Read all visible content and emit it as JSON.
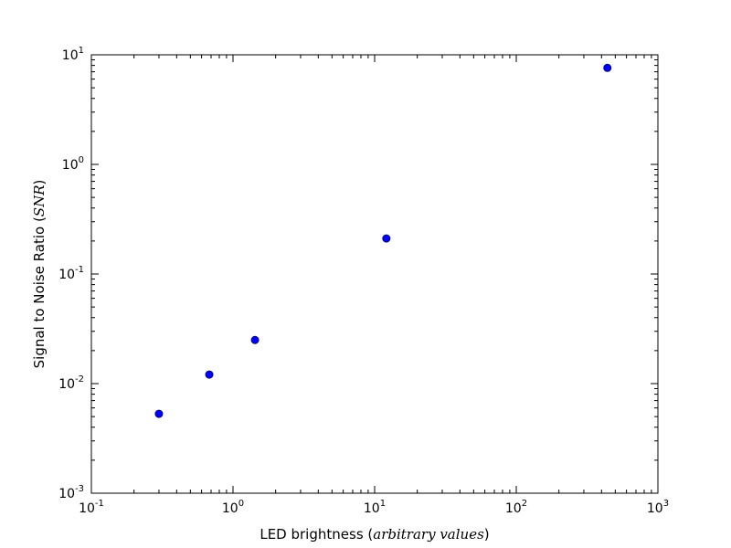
{
  "chart_data": {
    "type": "scatter",
    "title": "",
    "xlabel": {
      "prefix": "LED brightness (",
      "math": "arbitrary values",
      "suffix": ")"
    },
    "ylabel": {
      "prefix": "Signal to Noise Ratio (",
      "math": "SNR",
      "suffix": ")"
    },
    "xscale": "log",
    "yscale": "log",
    "xlim": [
      0.1,
      1000
    ],
    "ylim": [
      0.001,
      10
    ],
    "x_ticks": [
      {
        "base": "10",
        "exp": "-1"
      },
      {
        "base": "10",
        "exp": "0"
      },
      {
        "base": "10",
        "exp": "1"
      },
      {
        "base": "10",
        "exp": "2"
      },
      {
        "base": "10",
        "exp": "3"
      }
    ],
    "y_ticks": [
      {
        "base": "10",
        "exp": "-3"
      },
      {
        "base": "10",
        "exp": "-2"
      },
      {
        "base": "10",
        "exp": "-1"
      },
      {
        "base": "10",
        "exp": "0"
      },
      {
        "base": "10",
        "exp": "1"
      }
    ],
    "grid": false,
    "legend": false,
    "series": [
      {
        "color": "#0000ff",
        "edge_color": "#000080",
        "marker": "circle",
        "x": [
          0.3,
          0.68,
          1.43,
          12.1,
          440
        ],
        "y": [
          0.0053,
          0.0121,
          0.025,
          0.211,
          7.6
        ]
      }
    ]
  }
}
